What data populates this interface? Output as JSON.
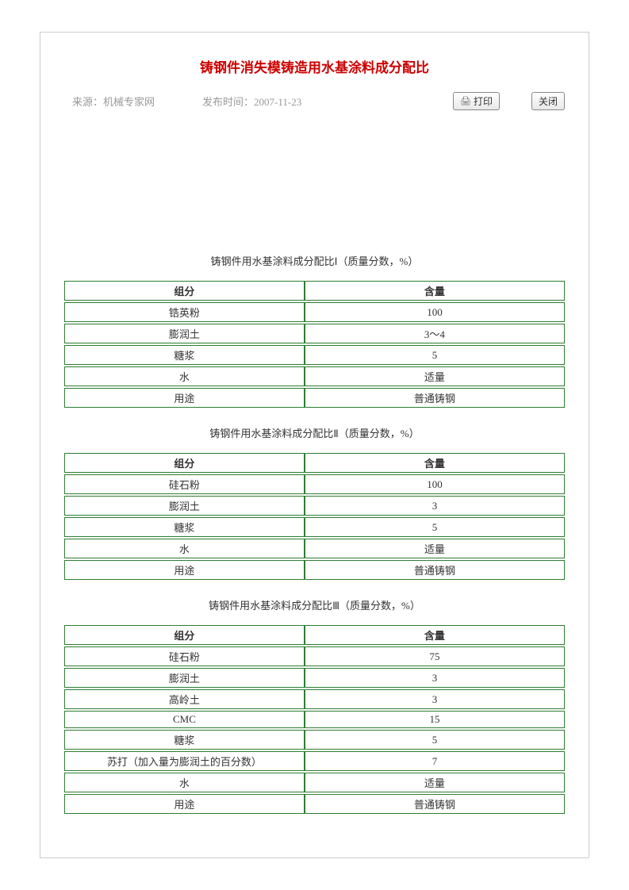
{
  "colors": {
    "title_color": "#cc0000",
    "meta_color": "#999999",
    "table_border": "#2e7d32",
    "text_color": "#333333",
    "container_border": "#cccccc",
    "background": "#ffffff"
  },
  "title": "铸钢件消失模铸造用水基涂料成分配比",
  "meta": {
    "source_label": "来源：",
    "source_value": "机械专家网",
    "date_label": "发布时间：",
    "date_value": "2007-11-23"
  },
  "buttons": {
    "print": "打印",
    "close": "关闭"
  },
  "tables": [
    {
      "caption": "铸钢件用水基涂料成分配比Ⅰ（质量分数，%）",
      "headers": [
        "组分",
        "含量"
      ],
      "rows": [
        [
          "锆英粉",
          "100"
        ],
        [
          "膨润土",
          "3～4"
        ],
        [
          "糖浆",
          "5"
        ],
        [
          "水",
          "适量"
        ],
        [
          "用途",
          "普通铸钢"
        ]
      ]
    },
    {
      "caption": "铸钢件用水基涂料成分配比Ⅱ（质量分数，%）",
      "headers": [
        "组分",
        "含量"
      ],
      "rows": [
        [
          "硅石粉",
          "100"
        ],
        [
          "膨润土",
          "3"
        ],
        [
          "糖浆",
          "5"
        ],
        [
          "水",
          "适量"
        ],
        [
          "用途",
          "普通铸钢"
        ]
      ]
    },
    {
      "caption": "铸钢件用水基涂料成分配比Ⅲ（质量分数，%）",
      "headers": [
        "组分",
        "含量"
      ],
      "rows": [
        [
          "硅石粉",
          "75"
        ],
        [
          "膨润土",
          "3"
        ],
        [
          "高岭土",
          "3"
        ],
        [
          "CMC",
          "15"
        ],
        [
          "糖浆",
          "5"
        ],
        [
          "苏打（加入量为膨润土的百分数）",
          "7"
        ],
        [
          "水",
          "适量"
        ],
        [
          "用途",
          "普通铸钢"
        ]
      ]
    }
  ]
}
